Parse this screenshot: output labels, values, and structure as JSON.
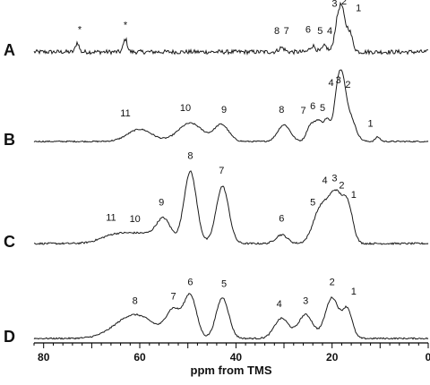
{
  "chart_data": {
    "type": "line",
    "subtype": "stacked-nmr-spectra",
    "title": "",
    "xlabel": "ppm from TMS",
    "ylabel": "",
    "xlim": [
      82,
      0
    ],
    "x_reversed": true,
    "xticks": [
      80,
      60,
      40,
      20,
      0
    ],
    "grid": false,
    "legend": "none",
    "colors": {
      "line": "#1a1a1a",
      "text": "#111111",
      "background": "#ffffff"
    },
    "series": [
      {
        "name": "A",
        "noise": 0.05,
        "peaks": [
          {
            "ppm": 73,
            "height": 0.22,
            "width": 0.35
          },
          {
            "ppm": 63,
            "height": 0.3,
            "width": 0.4
          },
          {
            "ppm": 30.5,
            "height": 0.1,
            "width": 0.6
          },
          {
            "ppm": 24,
            "height": 0.14,
            "width": 0.6
          },
          {
            "ppm": 21.5,
            "height": 0.14,
            "width": 0.5
          },
          {
            "ppm": 19,
            "height": 0.55,
            "width": 0.6
          },
          {
            "ppm": 18,
            "height": 0.9,
            "width": 0.6
          },
          {
            "ppm": 16.5,
            "height": 0.5,
            "width": 0.7
          }
        ],
        "labels": [
          {
            "text": "*",
            "ppm": 72.5,
            "height": 0.45
          },
          {
            "text": "*",
            "ppm": 63,
            "height": 0.55
          },
          {
            "text": "8",
            "ppm": 31.5,
            "height": 0.42
          },
          {
            "text": "7",
            "ppm": 29.5,
            "height": 0.42
          },
          {
            "text": "6",
            "ppm": 25,
            "height": 0.45
          },
          {
            "text": "5",
            "ppm": 22.5,
            "height": 0.42
          },
          {
            "text": "4",
            "ppm": 20.5,
            "height": 0.42
          },
          {
            "text": "3",
            "ppm": 19.5,
            "height": 1.05
          },
          {
            "text": "2",
            "ppm": 17.5,
            "height": 1.1
          },
          {
            "text": "1",
            "ppm": 14.5,
            "height": 0.95
          }
        ]
      },
      {
        "name": "B",
        "noise": 0.012,
        "peaks": [
          {
            "ppm": 60,
            "height": 0.22,
            "width": 2.5
          },
          {
            "ppm": 49.5,
            "height": 0.33,
            "width": 2.5
          },
          {
            "ppm": 43,
            "height": 0.3,
            "width": 1.5
          },
          {
            "ppm": 30,
            "height": 0.3,
            "width": 1.3
          },
          {
            "ppm": 24.5,
            "height": 0.28,
            "width": 0.8
          },
          {
            "ppm": 22.8,
            "height": 0.35,
            "width": 0.8
          },
          {
            "ppm": 21,
            "height": 0.38,
            "width": 0.7
          },
          {
            "ppm": 19,
            "height": 0.75,
            "width": 0.7
          },
          {
            "ppm": 17.9,
            "height": 0.8,
            "width": 0.7
          },
          {
            "ppm": 16.5,
            "height": 0.5,
            "width": 1.2
          },
          {
            "ppm": 10.5,
            "height": 0.08,
            "width": 0.5
          }
        ],
        "labels": [
          {
            "text": "11",
            "ppm": 63,
            "height": 0.45
          },
          {
            "text": "10",
            "ppm": 50.5,
            "height": 0.55
          },
          {
            "text": "9",
            "ppm": 42.5,
            "height": 0.52
          },
          {
            "text": "8",
            "ppm": 30.5,
            "height": 0.52
          },
          {
            "text": "7",
            "ppm": 26,
            "height": 0.5
          },
          {
            "text": "6",
            "ppm": 24,
            "height": 0.58
          },
          {
            "text": "5",
            "ppm": 22,
            "height": 0.55
          },
          {
            "text": "4",
            "ppm": 20.2,
            "height": 1.0
          },
          {
            "text": "3",
            "ppm": 18.7,
            "height": 1.05
          },
          {
            "text": "2",
            "ppm": 16.7,
            "height": 0.97
          },
          {
            "text": "1",
            "ppm": 12,
            "height": 0.27
          }
        ]
      },
      {
        "name": "C",
        "noise": 0.012,
        "peaks": [
          {
            "ppm": 65,
            "height": 0.12,
            "width": 3
          },
          {
            "ppm": 59,
            "height": 0.12,
            "width": 3
          },
          {
            "ppm": 55,
            "height": 0.3,
            "width": 1.5
          },
          {
            "ppm": 49.5,
            "height": 0.98,
            "width": 1.3
          },
          {
            "ppm": 42.8,
            "height": 0.78,
            "width": 1.3
          },
          {
            "ppm": 30.5,
            "height": 0.12,
            "width": 1.2
          },
          {
            "ppm": 22.5,
            "height": 0.45,
            "width": 1.5
          },
          {
            "ppm": 20.3,
            "height": 0.35,
            "width": 1.2
          },
          {
            "ppm": 19,
            "height": 0.4,
            "width": 1.0
          },
          {
            "ppm": 17.3,
            "height": 0.42,
            "width": 1.0
          },
          {
            "ppm": 16.2,
            "height": 0.25,
            "width": 0.9
          }
        ],
        "labels": [
          {
            "text": "11",
            "ppm": 66,
            "height": 0.31
          },
          {
            "text": "10",
            "ppm": 61,
            "height": 0.29
          },
          {
            "text": "9",
            "ppm": 55.5,
            "height": 0.52
          },
          {
            "text": "8",
            "ppm": 49.5,
            "height": 1.15
          },
          {
            "text": "7",
            "ppm": 43,
            "height": 0.95
          },
          {
            "text": "6",
            "ppm": 30.5,
            "height": 0.3
          },
          {
            "text": "5",
            "ppm": 24,
            "height": 0.52
          },
          {
            "text": "4",
            "ppm": 21.5,
            "height": 0.82
          },
          {
            "text": "3",
            "ppm": 19.5,
            "height": 0.85
          },
          {
            "text": "2",
            "ppm": 18,
            "height": 0.75
          },
          {
            "text": "1",
            "ppm": 15.5,
            "height": 0.62
          }
        ]
      },
      {
        "name": "D",
        "noise": 0.012,
        "peaks": [
          {
            "ppm": 61,
            "height": 0.38,
            "width": 4
          },
          {
            "ppm": 53,
            "height": 0.42,
            "width": 1.5
          },
          {
            "ppm": 49.5,
            "height": 0.68,
            "width": 1.3
          },
          {
            "ppm": 42.8,
            "height": 0.65,
            "width": 1.3
          },
          {
            "ppm": 30.5,
            "height": 0.32,
            "width": 1.5
          },
          {
            "ppm": 25.5,
            "height": 0.38,
            "width": 1.5
          },
          {
            "ppm": 20,
            "height": 0.65,
            "width": 1.4
          },
          {
            "ppm": 16.8,
            "height": 0.45,
            "width": 1.0
          }
        ],
        "labels": [
          {
            "text": "8",
            "ppm": 61,
            "height": 0.55
          },
          {
            "text": "7",
            "ppm": 53,
            "height": 0.62
          },
          {
            "text": "6",
            "ppm": 49.5,
            "height": 0.85
          },
          {
            "text": "5",
            "ppm": 42.5,
            "height": 0.82
          },
          {
            "text": "4",
            "ppm": 31,
            "height": 0.5
          },
          {
            "text": "3",
            "ppm": 25.5,
            "height": 0.55
          },
          {
            "text": "2",
            "ppm": 20,
            "height": 0.85
          },
          {
            "text": "1",
            "ppm": 15.5,
            "height": 0.7
          }
        ]
      }
    ]
  }
}
